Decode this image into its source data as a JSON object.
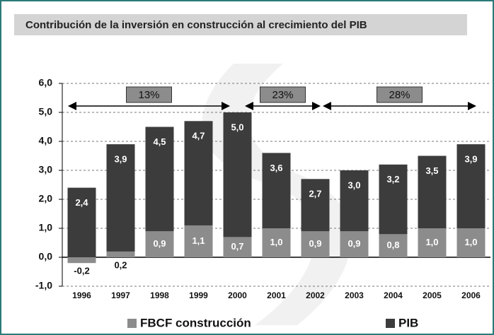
{
  "chart_data": {
    "type": "bar",
    "title": "Contribución de la inversión en construcción al crecimiento del PIB",
    "categories": [
      "1996",
      "1997",
      "1998",
      "1999",
      "2000",
      "2001",
      "2002",
      "2003",
      "2004",
      "2005",
      "2006"
    ],
    "series": [
      {
        "name": "PIB",
        "color": "#3c3c3c",
        "values": [
          2.4,
          3.9,
          4.5,
          4.7,
          5.0,
          3.6,
          2.7,
          3.0,
          3.2,
          3.5,
          3.9
        ],
        "value_labels": [
          "2,4",
          "3,9",
          "4,5",
          "4,7",
          "5,0",
          "3,6",
          "2,7",
          "3,0",
          "3,2",
          "3,5",
          "3,9"
        ]
      },
      {
        "name": "FBCF construcción",
        "color": "#8c8c8c",
        "values": [
          -0.2,
          0.2,
          0.9,
          1.1,
          0.7,
          1.0,
          0.9,
          0.9,
          0.8,
          1.0,
          1.0
        ],
        "value_labels": [
          "-0,2",
          "0,2",
          "0,9",
          "1,1",
          "0,7",
          "1,0",
          "0,9",
          "0,9",
          "0,8",
          "1,0",
          "1,0"
        ]
      }
    ],
    "ylim": [
      -1,
      6
    ],
    "yticks": [
      {
        "value": -1,
        "label": "-1,0"
      },
      {
        "value": 0,
        "label": "0,0"
      },
      {
        "value": 1,
        "label": "1,0"
      },
      {
        "value": 2,
        "label": "2,0"
      },
      {
        "value": 3,
        "label": "3,0"
      },
      {
        "value": 4,
        "label": "4,0"
      },
      {
        "value": 5,
        "label": "5,0"
      },
      {
        "value": 6,
        "label": "6,0"
      }
    ],
    "grid": true,
    "annotations": [
      {
        "text": "13%",
        "from": "1996",
        "to": "2000"
      },
      {
        "text": "23%",
        "from": "2000",
        "to": "2002"
      },
      {
        "text": "28%",
        "from": "2002",
        "to": "2006"
      }
    ]
  }
}
